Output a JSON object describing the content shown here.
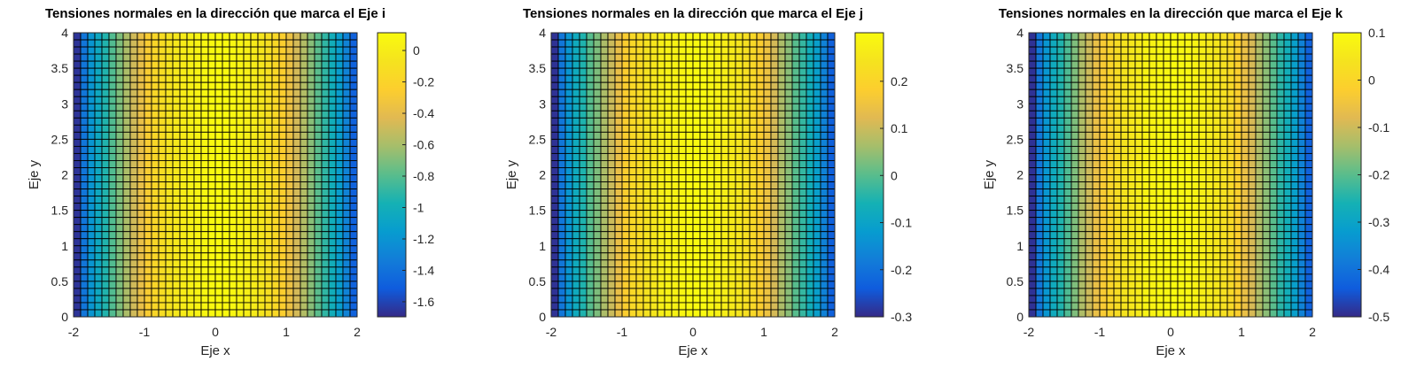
{
  "chart_data": [
    {
      "type": "heatmap",
      "title": "Tensiones normales en la dirección que marca el Eje i",
      "xlabel": "Eje x",
      "ylabel": "Eje y",
      "xlim": [
        -2,
        2
      ],
      "ylim": [
        0,
        4
      ],
      "x_ticks": [
        "-2",
        "-1",
        "0",
        "1",
        "2"
      ],
      "y_ticks": [
        "0",
        "0.5",
        "1",
        "1.5",
        "2",
        "2.5",
        "3",
        "3.5",
        "4"
      ],
      "clim": [
        -1.696,
        0.113
      ],
      "colorbar_ticks": [
        "0",
        "-0.2",
        "-0.4",
        "-0.6",
        "-0.8",
        "-1",
        "-1.2",
        "-1.4",
        "-1.6"
      ],
      "rows": 40,
      "grid_step": 0.1,
      "column_values": [
        -1.66,
        -1.37,
        -1.19,
        -1.05,
        -0.94,
        -0.81,
        -0.7,
        -0.59,
        -0.48,
        -0.38,
        -0.27,
        -0.18,
        -0.12,
        -0.07,
        -0.03,
        0.0,
        0.04,
        0.06,
        0.08,
        0.1,
        0.11,
        0.1,
        0.08,
        0.06,
        0.02,
        -0.01,
        -0.05,
        -0.1,
        -0.16,
        -0.25,
        -0.36,
        -0.47,
        -0.57,
        -0.68,
        -0.79,
        -0.9,
        -1.01,
        -1.14,
        -1.3,
        -1.48
      ]
    },
    {
      "type": "heatmap",
      "title": "Tensiones normales en la dirección que marca el Eje j",
      "xlabel": "Eje x",
      "ylabel": "Eje y",
      "xlim": [
        -2,
        2
      ],
      "ylim": [
        0,
        4
      ],
      "x_ticks": [
        "-2",
        "-1",
        "0",
        "1",
        "2"
      ],
      "y_ticks": [
        "0",
        "0.5",
        "1",
        "1.5",
        "2",
        "2.5",
        "3",
        "3.5",
        "4"
      ],
      "clim": [
        -0.3,
        0.303
      ],
      "colorbar_ticks": [
        "0.2",
        "0.1",
        "0",
        "-0.1",
        "-0.2",
        "-0.3"
      ],
      "rows": 40,
      "grid_step": 0.1,
      "column_values": [
        -0.29,
        -0.19,
        -0.13,
        -0.08,
        -0.05,
        0.0,
        0.03,
        0.07,
        0.1,
        0.14,
        0.18,
        0.21,
        0.22,
        0.24,
        0.25,
        0.27,
        0.28,
        0.28,
        0.29,
        0.3,
        0.3,
        0.3,
        0.29,
        0.28,
        0.27,
        0.26,
        0.25,
        0.23,
        0.21,
        0.18,
        0.15,
        0.11,
        0.07,
        0.04,
        0.0,
        -0.03,
        -0.07,
        -0.11,
        -0.17,
        -0.23
      ]
    },
    {
      "type": "heatmap",
      "title": "Tensiones normales en la dirección que marca el Eje k",
      "xlabel": "Eje x",
      "ylabel": "Eje y",
      "xlim": [
        -2,
        2
      ],
      "ylim": [
        0,
        4
      ],
      "x_ticks": [
        "-2",
        "-1",
        "0",
        "1",
        "2"
      ],
      "y_ticks": [
        "0",
        "0.5",
        "1",
        "1.5",
        "2",
        "2.5",
        "3",
        "3.5",
        "4"
      ],
      "clim": [
        -0.5,
        0.1
      ],
      "colorbar_ticks": [
        "0.1",
        "0",
        "-0.1",
        "-0.2",
        "-0.3",
        "-0.4",
        "-0.5"
      ],
      "rows": 40,
      "grid_step": 0.1,
      "column_values": [
        -0.49,
        -0.39,
        -0.33,
        -0.28,
        -0.25,
        -0.21,
        -0.17,
        -0.13,
        -0.1,
        -0.06,
        -0.03,
        0.0,
        0.02,
        0.04,
        0.05,
        0.06,
        0.08,
        0.08,
        0.09,
        0.09,
        0.1,
        0.09,
        0.09,
        0.08,
        0.07,
        0.06,
        0.05,
        0.03,
        0.01,
        -0.02,
        -0.06,
        -0.09,
        -0.13,
        -0.16,
        -0.2,
        -0.24,
        -0.27,
        -0.31,
        -0.37,
        -0.43
      ]
    }
  ]
}
